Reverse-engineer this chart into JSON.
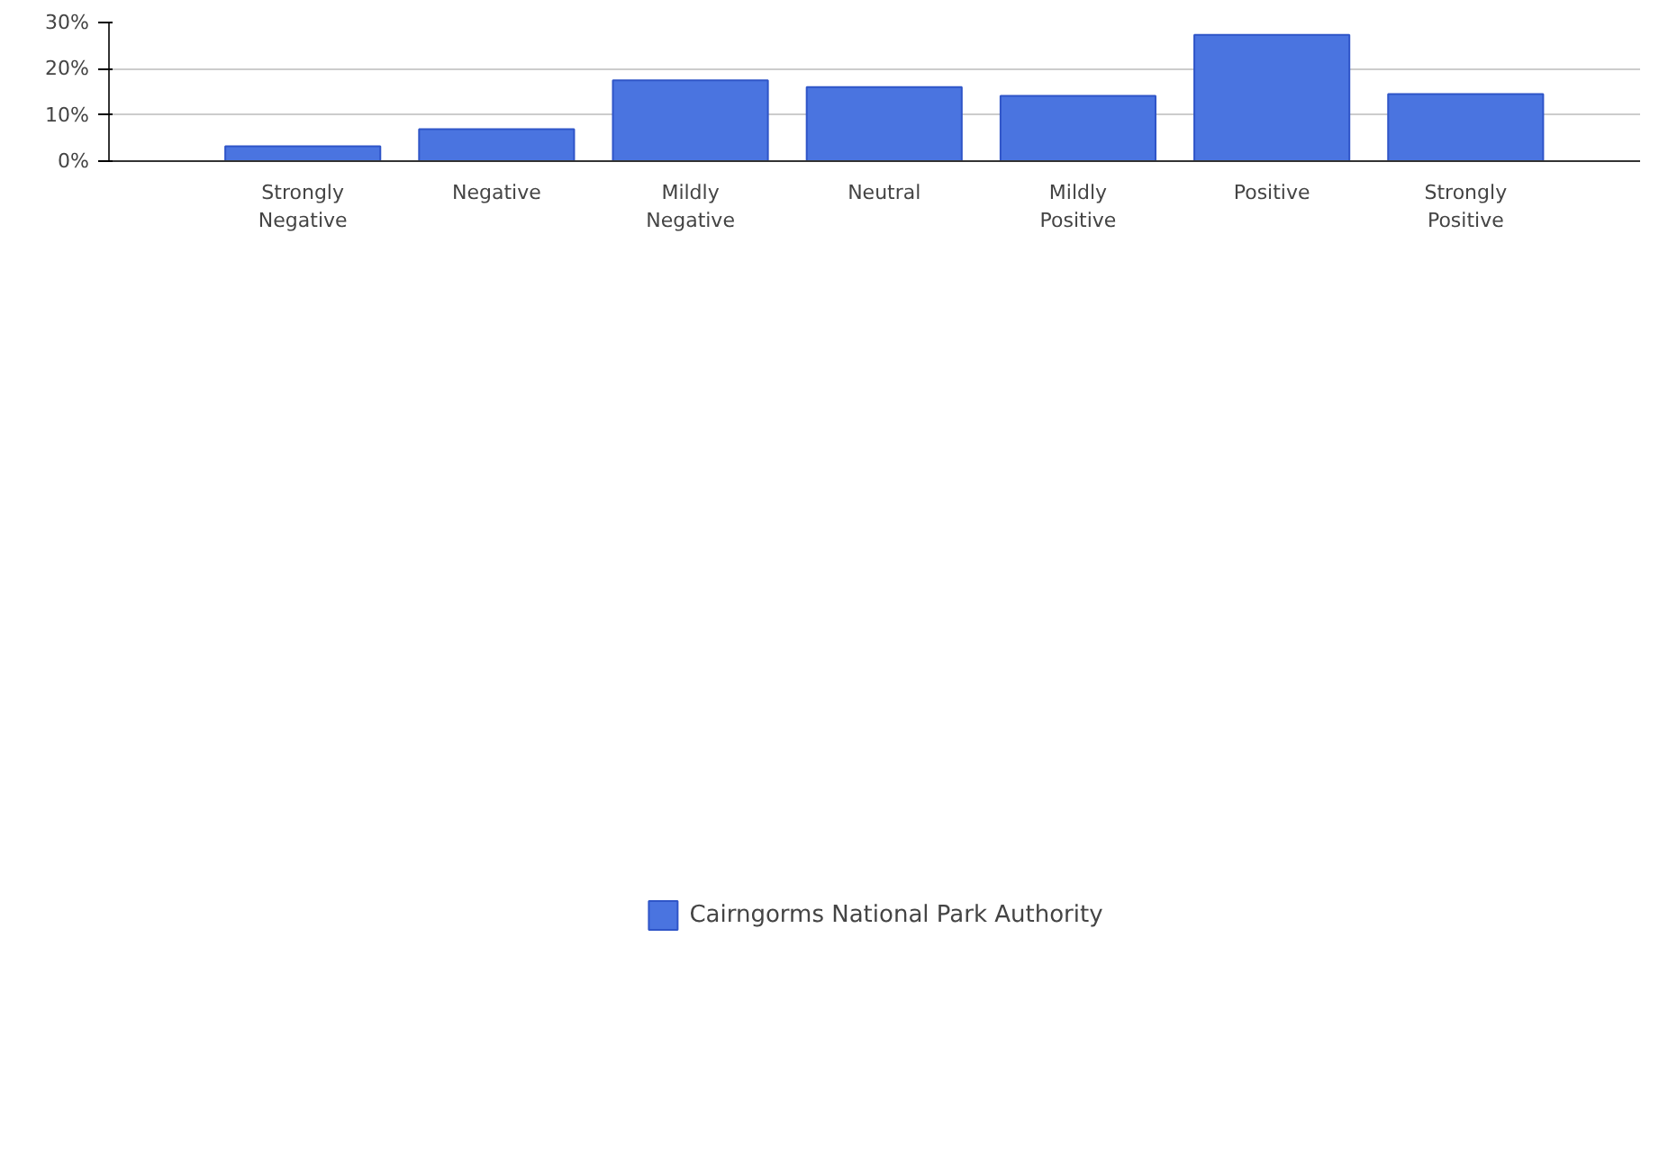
{
  "chart_data": {
    "type": "bar",
    "categories": [
      "Strongly Negative",
      "Negative",
      "Mildly Negative",
      "Neutral",
      "Mildly Positive",
      "Positive",
      "Strongly Positive"
    ],
    "series": [
      {
        "name": "Cairngorms National Park Authority",
        "color": "#4a74e0",
        "values": [
          3.2,
          6.9,
          17.5,
          16.0,
          14.1,
          27.3,
          14.5
        ]
      }
    ],
    "ylim": [
      0,
      30
    ],
    "yticks": [
      {
        "value": 0,
        "label": "0%"
      },
      {
        "value": 10,
        "label": "10%"
      },
      {
        "value": 20,
        "label": "20%"
      },
      {
        "value": 30,
        "label": "30%"
      }
    ],
    "grid": "y",
    "legend": "bottom"
  }
}
